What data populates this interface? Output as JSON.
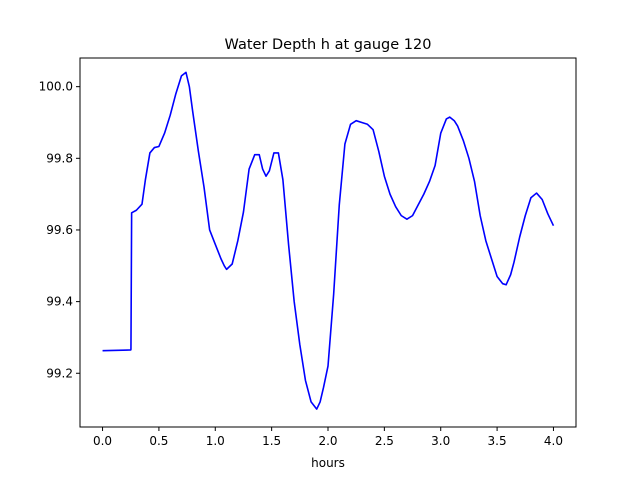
{
  "chart_data": {
    "type": "line",
    "title": "Water Depth h at gauge 120",
    "xlabel": "hours",
    "ylabel": "",
    "xlim": [
      -0.2,
      4.2
    ],
    "ylim": [
      99.05,
      100.08
    ],
    "grid": false,
    "legend": "none",
    "x_ticks": [
      0.0,
      0.5,
      1.0,
      1.5,
      2.0,
      2.5,
      3.0,
      3.5,
      4.0
    ],
    "x_tick_labels": [
      "0.0",
      "0.5",
      "1.0",
      "1.5",
      "2.0",
      "2.5",
      "3.0",
      "3.5",
      "4.0"
    ],
    "y_ticks": [
      99.2,
      99.4,
      99.6,
      99.8,
      100.0
    ],
    "y_tick_labels": [
      "99.2",
      "99.4",
      "99.6",
      "99.8",
      "100.0"
    ],
    "series": [
      {
        "color": "#0000ff",
        "x": [
          0.0,
          0.25,
          0.252,
          0.258,
          0.3,
          0.35,
          0.38,
          0.42,
          0.46,
          0.5,
          0.55,
          0.6,
          0.65,
          0.7,
          0.74,
          0.77,
          0.8,
          0.85,
          0.9,
          0.95,
          1.0,
          1.05,
          1.08,
          1.1,
          1.15,
          1.2,
          1.25,
          1.3,
          1.35,
          1.39,
          1.42,
          1.45,
          1.48,
          1.52,
          1.56,
          1.6,
          1.65,
          1.7,
          1.75,
          1.8,
          1.85,
          1.9,
          1.93,
          1.96,
          2.0,
          2.05,
          2.1,
          2.15,
          2.2,
          2.25,
          2.3,
          2.35,
          2.4,
          2.45,
          2.5,
          2.55,
          2.6,
          2.65,
          2.7,
          2.75,
          2.8,
          2.85,
          2.9,
          2.95,
          3.0,
          3.05,
          3.08,
          3.12,
          3.15,
          3.2,
          3.25,
          3.3,
          3.35,
          3.4,
          3.45,
          3.5,
          3.55,
          3.58,
          3.62,
          3.65,
          3.7,
          3.75,
          3.8,
          3.85,
          3.9,
          3.95,
          4.0
        ],
        "y": [
          99.263,
          99.265,
          99.267,
          99.648,
          99.655,
          99.672,
          99.74,
          99.815,
          99.83,
          99.833,
          99.87,
          99.92,
          99.98,
          100.03,
          100.04,
          100.0,
          99.93,
          99.82,
          99.72,
          99.6,
          99.56,
          99.52,
          99.5,
          99.49,
          99.505,
          99.57,
          99.65,
          99.77,
          99.81,
          99.81,
          99.77,
          99.75,
          99.765,
          99.815,
          99.815,
          99.74,
          99.56,
          99.4,
          99.28,
          99.18,
          99.12,
          99.1,
          99.12,
          99.16,
          99.22,
          99.42,
          99.67,
          99.84,
          99.895,
          99.905,
          99.9,
          99.895,
          99.88,
          99.82,
          99.75,
          99.7,
          99.665,
          99.64,
          99.63,
          99.64,
          99.67,
          99.7,
          99.735,
          99.78,
          99.87,
          99.91,
          99.915,
          99.905,
          99.89,
          99.85,
          99.8,
          99.735,
          99.64,
          99.57,
          99.52,
          99.47,
          99.45,
          99.447,
          99.475,
          99.51,
          99.58,
          99.64,
          99.69,
          99.703,
          99.685,
          99.645,
          99.612
        ]
      }
    ]
  }
}
